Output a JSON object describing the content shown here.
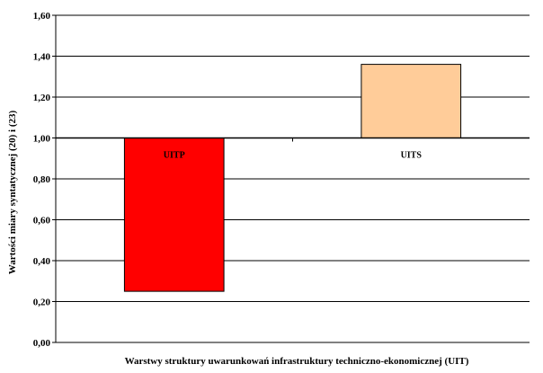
{
  "chart_data": {
    "type": "bar",
    "baseline": 1.0,
    "categories": [
      "UITP",
      "UITS"
    ],
    "values": [
      0.25,
      1.36
    ],
    "bar_colors": [
      "#ff0000",
      "#ffcc99"
    ],
    "xlabel": "Warstwy struktury uwarunkowań infrastruktury techniczno-ekonomicznej (UIT)",
    "ylabel": "Wartości miary syntatycznej (20) i (23)",
    "ylim": [
      0,
      1.6
    ],
    "yticks": [
      "0,00",
      "0,20",
      "0,40",
      "0,60",
      "0,80",
      "1,00",
      "1,20",
      "1,40",
      "1,60"
    ],
    "grid": true,
    "legend": "none"
  }
}
